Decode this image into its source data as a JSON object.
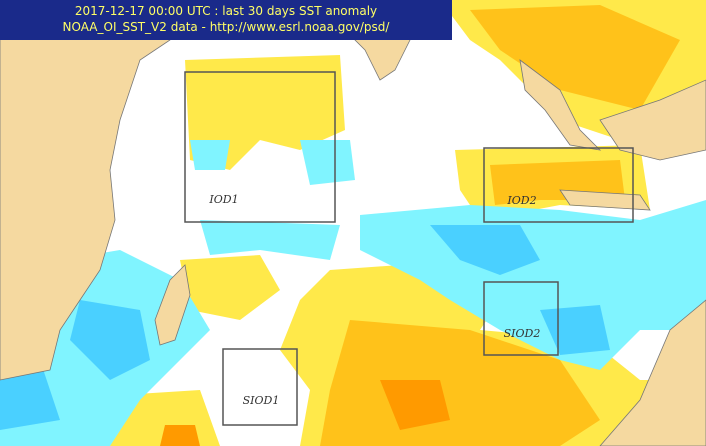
{
  "header": {
    "title": "2017-12-17 00:00 UTC : last 30 days SST anomaly",
    "source": "NOAA_OI_SST_V2 data - http://www.esrl.noaa.gov/psd/"
  },
  "regions": [
    {
      "label": "IOD1"
    },
    {
      "label": "IOD2"
    },
    {
      "label": "SIOD1"
    },
    {
      "label": "SIOD2"
    }
  ]
}
